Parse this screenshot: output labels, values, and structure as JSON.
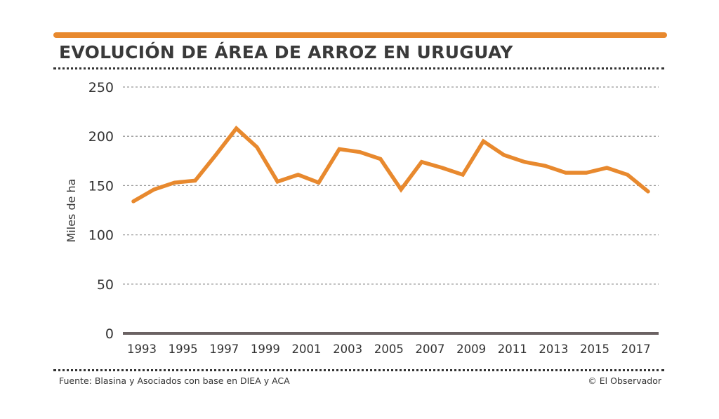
{
  "header": {
    "title": "EVOLUCIÓN DE ÁREA DE ARROZ EN URUGUAY"
  },
  "footer": {
    "source": "Fuente: Blasina y Asociados con base en DIEA y ACA",
    "credit": "© El Observador"
  },
  "colors": {
    "accent": "#e8892e",
    "axis": "#6b6263",
    "grid": "#999999"
  },
  "chart_data": {
    "type": "line",
    "title": "EVOLUCIÓN DE ÁREA DE ARROZ EN URUGUAY",
    "xlabel": "",
    "ylabel": "Miles de ha",
    "ylim": [
      0,
      250
    ],
    "yticks": [
      0,
      50,
      100,
      150,
      200,
      250
    ],
    "xtick_labels": [
      "1993",
      "1995",
      "1997",
      "1999",
      "2001",
      "2003",
      "2005",
      "2007",
      "2009",
      "2011",
      "2013",
      "2015",
      "2017"
    ],
    "grid": true,
    "series": [
      {
        "name": "Área de arroz",
        "x": [
          1993,
          1994,
          1995,
          1996,
          1997,
          1998,
          1999,
          2000,
          2001,
          2002,
          2003,
          2004,
          2005,
          2006,
          2007,
          2008,
          2009,
          2010,
          2011,
          2012,
          2013,
          2014,
          2015,
          2016,
          2017,
          2018
        ],
        "values": [
          134,
          146,
          153,
          155,
          181,
          208,
          189,
          154,
          161,
          153,
          187,
          184,
          177,
          146,
          174,
          168,
          161,
          195,
          181,
          174,
          170,
          163,
          163,
          168,
          161,
          144
        ]
      }
    ]
  }
}
